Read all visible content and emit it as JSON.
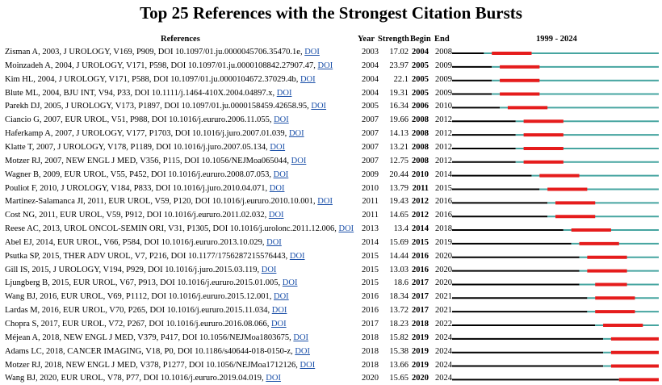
{
  "chart_data": {
    "type": "table",
    "title": "Top 25 References with the Strongest Citation Bursts",
    "columns": [
      "References",
      "Year",
      "Strength",
      "Begin",
      "End",
      "1999 - 2024"
    ],
    "timeline": {
      "start": 1999,
      "end": 2024
    },
    "colors": {
      "before": "#000000",
      "active": "#46a5a0",
      "burst": "#e51c1c"
    },
    "rows": [
      {
        "ref": "Zisman A, 2003, J UROLOGY, V169, P909, DOI 10.1097/01.ju.0000045706.35470.1e,",
        "doi": "DOI",
        "year": 2003,
        "strength": "17.02",
        "begin": 2004,
        "end": 2008
      },
      {
        "ref": "Moinzadeh A, 2004, J UROLOGY, V171, P598, DOI 10.1097/01.ju.0000108842.27907.47,",
        "doi": "DOI",
        "year": 2004,
        "strength": "23.97",
        "begin": 2005,
        "end": 2009
      },
      {
        "ref": "Kim HL, 2004, J UROLOGY, V171, P588, DOI 10.1097/01.ju.0000104672.37029.4b,",
        "doi": "DOI",
        "year": 2004,
        "strength": "22.1",
        "begin": 2005,
        "end": 2009
      },
      {
        "ref": "Blute ML, 2004, BJU INT, V94, P33, DOI 10.1111/j.1464-410X.2004.04897.x,",
        "doi": "DOI",
        "year": 2004,
        "strength": "19.31",
        "begin": 2005,
        "end": 2009
      },
      {
        "ref": "Parekh DJ, 2005, J UROLOGY, V173, P1897, DOI 10.1097/01.ju.0000158459.42658.95,",
        "doi": "DOI",
        "year": 2005,
        "strength": "16.34",
        "begin": 2006,
        "end": 2010
      },
      {
        "ref": "Ciancio G, 2007, EUR UROL, V51, P988, DOI 10.1016/j.eururo.2006.11.055,",
        "doi": "DOI",
        "year": 2007,
        "strength": "19.66",
        "begin": 2008,
        "end": 2012
      },
      {
        "ref": "Haferkamp A, 2007, J UROLOGY, V177, P1703, DOI 10.1016/j.juro.2007.01.039,",
        "doi": "DOI",
        "year": 2007,
        "strength": "14.13",
        "begin": 2008,
        "end": 2012
      },
      {
        "ref": "Klatte T, 2007, J UROLOGY, V178, P1189, DOI 10.1016/j.juro.2007.05.134,",
        "doi": "DOI",
        "year": 2007,
        "strength": "13.21",
        "begin": 2008,
        "end": 2012
      },
      {
        "ref": "Motzer RJ, 2007, NEW ENGL J MED, V356, P115, DOI 10.1056/NEJMoa065044,",
        "doi": "DOI",
        "year": 2007,
        "strength": "12.75",
        "begin": 2008,
        "end": 2012
      },
      {
        "ref": "Wagner B, 2009, EUR UROL, V55, P452, DOI 10.1016/j.eururo.2008.07.053,",
        "doi": "DOI",
        "year": 2009,
        "strength": "20.44",
        "begin": 2010,
        "end": 2014
      },
      {
        "ref": "Pouliot F, 2010, J UROLOGY, V184, P833, DOI 10.1016/j.juro.2010.04.071,",
        "doi": "DOI",
        "year": 2010,
        "strength": "13.79",
        "begin": 2011,
        "end": 2015
      },
      {
        "ref": "Martinez-Salamanca JI, 2011, EUR UROL, V59, P120, DOI 10.1016/j.eururo.2010.10.001,",
        "doi": "DOI",
        "year": 2011,
        "strength": "19.43",
        "begin": 2012,
        "end": 2016
      },
      {
        "ref": "Cost NG, 2011, EUR UROL, V59, P912, DOI 10.1016/j.eururo.2011.02.032,",
        "doi": "DOI",
        "year": 2011,
        "strength": "14.65",
        "begin": 2012,
        "end": 2016
      },
      {
        "ref": "Reese AC, 2013, UROL ONCOL-SEMIN ORI, V31, P1305, DOI 10.1016/j.urolonc.2011.12.006,",
        "doi": "DOI",
        "year": 2013,
        "strength": "13.4",
        "begin": 2014,
        "end": 2018
      },
      {
        "ref": "Abel EJ, 2014, EUR UROL, V66, P584, DOI 10.1016/j.eururo.2013.10.029,",
        "doi": "DOI",
        "year": 2014,
        "strength": "15.69",
        "begin": 2015,
        "end": 2019
      },
      {
        "ref": "Psutka SP, 2015, THER ADV UROL, V7, P216, DOI 10.1177/1756287215576443,",
        "doi": "DOI",
        "year": 2015,
        "strength": "14.44",
        "begin": 2016,
        "end": 2020
      },
      {
        "ref": "Gill IS, 2015, J UROLOGY, V194, P929, DOI 10.1016/j.juro.2015.03.119,",
        "doi": "DOI",
        "year": 2015,
        "strength": "13.03",
        "begin": 2016,
        "end": 2020
      },
      {
        "ref": "Ljungberg B, 2015, EUR UROL, V67, P913, DOI 10.1016/j.eururo.2015.01.005,",
        "doi": "DOI",
        "year": 2015,
        "strength": "18.6",
        "begin": 2017,
        "end": 2020
      },
      {
        "ref": "Wang BJ, 2016, EUR UROL, V69, P1112, DOI 10.1016/j.eururo.2015.12.001,",
        "doi": "DOI",
        "year": 2016,
        "strength": "18.34",
        "begin": 2017,
        "end": 2021
      },
      {
        "ref": "Lardas M, 2016, EUR UROL, V70, P265, DOI 10.1016/j.eururo.2015.11.034,",
        "doi": "DOI",
        "year": 2016,
        "strength": "13.72",
        "begin": 2017,
        "end": 2021
      },
      {
        "ref": "Chopra S, 2017, EUR UROL, V72, P267, DOI 10.1016/j.eururo.2016.08.066,",
        "doi": "DOI",
        "year": 2017,
        "strength": "18.23",
        "begin": 2018,
        "end": 2022
      },
      {
        "ref": "Méjean A, 2018, NEW ENGL J MED, V379, P417, DOI 10.1056/NEJMoa1803675,",
        "doi": "DOI",
        "year": 2018,
        "strength": "15.82",
        "begin": 2019,
        "end": 2024
      },
      {
        "ref": "Adams LC, 2018, CANCER IMAGING, V18, P0, DOI 10.1186/s40644-018-0150-z,",
        "doi": "DOI",
        "year": 2018,
        "strength": "15.38",
        "begin": 2019,
        "end": 2024
      },
      {
        "ref": "Motzer RJ, 2018, NEW ENGL J MED, V378, P1277, DOI 10.1056/NEJMoa1712126,",
        "doi": "DOI",
        "year": 2018,
        "strength": "13.66",
        "begin": 2019,
        "end": 2024
      },
      {
        "ref": "Wang BJ, 2020, EUR UROL, V78, P77, DOI 10.1016/j.eururo.2019.04.019,",
        "doi": "DOI",
        "year": 2020,
        "strength": "15.65",
        "begin": 2020,
        "end": 2024
      }
    ]
  }
}
